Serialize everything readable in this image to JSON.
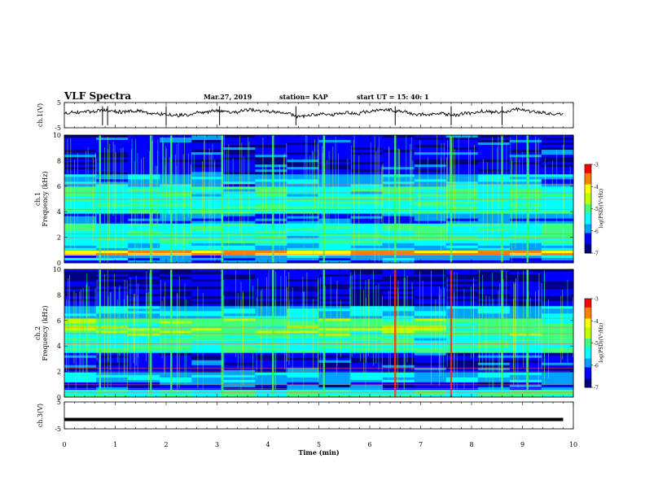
{
  "header": {
    "title": "VLF Spectra",
    "date": "Mar.27, 2019",
    "station": "station= KAP",
    "start_ut": "start  UT =   15: 40: 1"
  },
  "colors": {
    "waveform": "#000000",
    "colormap": [
      "#000080",
      "#0000ff",
      "#00a0ff",
      "#00ffff",
      "#40ff80",
      "#c0ff00",
      "#ffff00",
      "#ff8000",
      "#ff0000",
      "#ffffff"
    ]
  },
  "chart_data": [
    {
      "type": "line",
      "panel": "ch1-waveform",
      "ylabel": "ch.1(V)",
      "ylim": [
        -5,
        5
      ],
      "yticks": [
        "5",
        "-5"
      ],
      "xlim": [
        0,
        10
      ],
      "description_values": "noisy signal fluctuating around ~1 V",
      "baseline": 1
    },
    {
      "type": "heatmap",
      "panel": "ch1-spectrogram",
      "ylabel": "ch.1 Frequency (kHz)",
      "ylim": [
        0,
        10
      ],
      "yticks": [
        "0",
        "2",
        "4",
        "6",
        "8",
        "10"
      ],
      "xlim": [
        0,
        10
      ],
      "colorbar_label": "log(PSD)(V²/Hz)",
      "colorbar_range": [
        -7,
        -3
      ],
      "colorbar_ticks": [
        "-3",
        "-4",
        "-5",
        "-6",
        "-7"
      ],
      "vertical_bursts_min": [
        0.7,
        1.7,
        2.1,
        3.1,
        4.1,
        5.1,
        6.5,
        7.6,
        8.6,
        9.1
      ]
    },
    {
      "type": "heatmap",
      "panel": "ch2-spectrogram",
      "ylabel": "ch.2 Frequency (kHz)",
      "ylim": [
        0,
        10
      ],
      "yticks": [
        "0",
        "2",
        "4",
        "6",
        "8",
        "10"
      ],
      "xlim": [
        0,
        10
      ],
      "colorbar_label": "log(PSD)(V²/Hz)",
      "colorbar_range": [
        -7,
        -3
      ],
      "colorbar_ticks": [
        "-3",
        "-4",
        "-5",
        "-6",
        "-7"
      ],
      "vertical_bursts_min": [
        0.7,
        1.7,
        2.1,
        3.1,
        4.1,
        5.1,
        6.5,
        7.6,
        8.6,
        9.1
      ]
    },
    {
      "type": "line",
      "panel": "ch3-waveform",
      "ylabel": "ch.3(V)",
      "ylim": [
        -5,
        5
      ],
      "yticks": [
        "5",
        "-5"
      ],
      "xlim": [
        0,
        10
      ],
      "constant_value": -1.5,
      "xlabel": "Time  (min)",
      "xticks": [
        "0",
        "1",
        "2",
        "3",
        "4",
        "5",
        "6",
        "7",
        "8",
        "9",
        "10"
      ]
    }
  ]
}
